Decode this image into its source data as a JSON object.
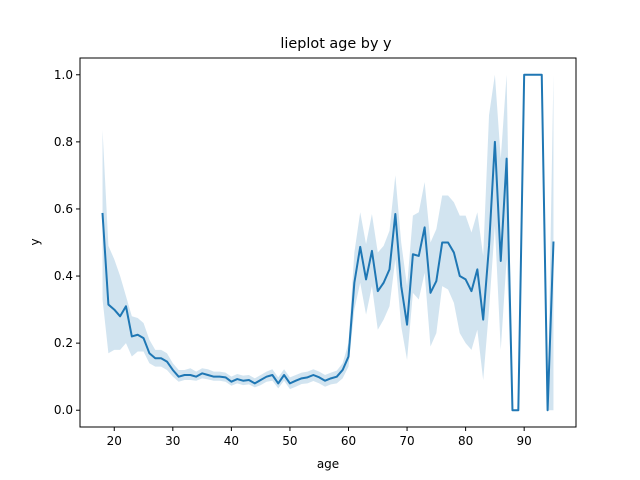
{
  "chart_data": {
    "type": "line",
    "title": "lieplot age by y",
    "xlabel": "age",
    "ylabel": "y",
    "xlim": [
      14.15,
      98.85
    ],
    "ylim": [
      -0.05,
      1.05
    ],
    "grid": false,
    "xticks": [
      20,
      30,
      40,
      50,
      60,
      70,
      80,
      90
    ],
    "yticks": [
      0.0,
      0.2,
      0.4,
      0.6,
      0.8,
      1.0
    ],
    "ytick_labels": [
      "0.0",
      "0.2",
      "0.4",
      "0.6",
      "0.8",
      "1.0"
    ],
    "series": [
      {
        "color": "#1f77b4",
        "ci_color": "#1f77b4",
        "x": [
          18,
          19,
          20,
          21,
          22,
          23,
          24,
          25,
          26,
          27,
          28,
          29,
          30,
          31,
          32,
          33,
          34,
          35,
          36,
          37,
          38,
          39,
          40,
          41,
          42,
          43,
          44,
          45,
          46,
          47,
          48,
          49,
          50,
          51,
          52,
          53,
          54,
          55,
          56,
          57,
          58,
          59,
          60,
          61,
          62,
          63,
          64,
          65,
          66,
          67,
          68,
          69,
          70,
          71,
          72,
          73,
          74,
          75,
          76,
          77,
          78,
          79,
          80,
          81,
          82,
          83,
          84,
          85,
          86,
          87,
          88,
          89,
          90,
          91,
          92,
          93,
          94,
          95
        ],
        "y": [
          0.585,
          0.315,
          0.3,
          0.28,
          0.31,
          0.22,
          0.225,
          0.215,
          0.17,
          0.155,
          0.155,
          0.145,
          0.12,
          0.1,
          0.105,
          0.105,
          0.1,
          0.11,
          0.105,
          0.1,
          0.1,
          0.098,
          0.085,
          0.093,
          0.088,
          0.09,
          0.08,
          0.09,
          0.1,
          0.105,
          0.08,
          0.105,
          0.08,
          0.088,
          0.095,
          0.098,
          0.105,
          0.098,
          0.088,
          0.095,
          0.1,
          0.12,
          0.16,
          0.38,
          0.487,
          0.39,
          0.475,
          0.355,
          0.38,
          0.42,
          0.585,
          0.37,
          0.255,
          0.465,
          0.46,
          0.545,
          0.35,
          0.385,
          0.5,
          0.5,
          0.47,
          0.4,
          0.39,
          0.355,
          0.42,
          0.27,
          0.49,
          0.8,
          0.445,
          0.75,
          0.0,
          0.0,
          1.0,
          1.0,
          1.0,
          1.0,
          0.0,
          0.5
        ],
        "y_low": [
          0.33,
          0.17,
          0.18,
          0.18,
          0.2,
          0.16,
          0.175,
          0.175,
          0.14,
          0.13,
          0.13,
          0.12,
          0.1,
          0.085,
          0.09,
          0.09,
          0.088,
          0.095,
          0.092,
          0.088,
          0.088,
          0.085,
          0.073,
          0.08,
          0.075,
          0.077,
          0.068,
          0.075,
          0.085,
          0.088,
          0.065,
          0.088,
          0.063,
          0.07,
          0.078,
          0.08,
          0.087,
          0.08,
          0.07,
          0.077,
          0.08,
          0.095,
          0.13,
          0.3,
          0.38,
          0.285,
          0.37,
          0.24,
          0.27,
          0.31,
          0.45,
          0.25,
          0.15,
          0.35,
          0.33,
          0.41,
          0.19,
          0.23,
          0.37,
          0.36,
          0.32,
          0.23,
          0.2,
          0.18,
          0.24,
          0.09,
          0.3,
          0.55,
          0.18,
          0.45,
          0.0,
          0.0,
          1.0,
          1.0,
          1.0,
          1.0,
          0.0,
          0.0
        ],
        "y_high": [
          0.835,
          0.49,
          0.45,
          0.4,
          0.34,
          0.28,
          0.275,
          0.26,
          0.21,
          0.18,
          0.18,
          0.17,
          0.14,
          0.12,
          0.12,
          0.125,
          0.115,
          0.125,
          0.122,
          0.115,
          0.115,
          0.112,
          0.1,
          0.108,
          0.103,
          0.105,
          0.095,
          0.105,
          0.115,
          0.122,
          0.098,
          0.122,
          0.098,
          0.105,
          0.112,
          0.115,
          0.122,
          0.115,
          0.105,
          0.112,
          0.118,
          0.14,
          0.2,
          0.47,
          0.59,
          0.495,
          0.585,
          0.47,
          0.49,
          0.535,
          0.7,
          0.5,
          0.37,
          0.58,
          0.59,
          0.68,
          0.5,
          0.54,
          0.64,
          0.64,
          0.62,
          0.58,
          0.58,
          0.53,
          0.59,
          0.46,
          0.88,
          1.0,
          0.75,
          1.0,
          0.0,
          0.0,
          1.0,
          1.0,
          1.0,
          1.0,
          0.0,
          1.0
        ]
      }
    ]
  }
}
